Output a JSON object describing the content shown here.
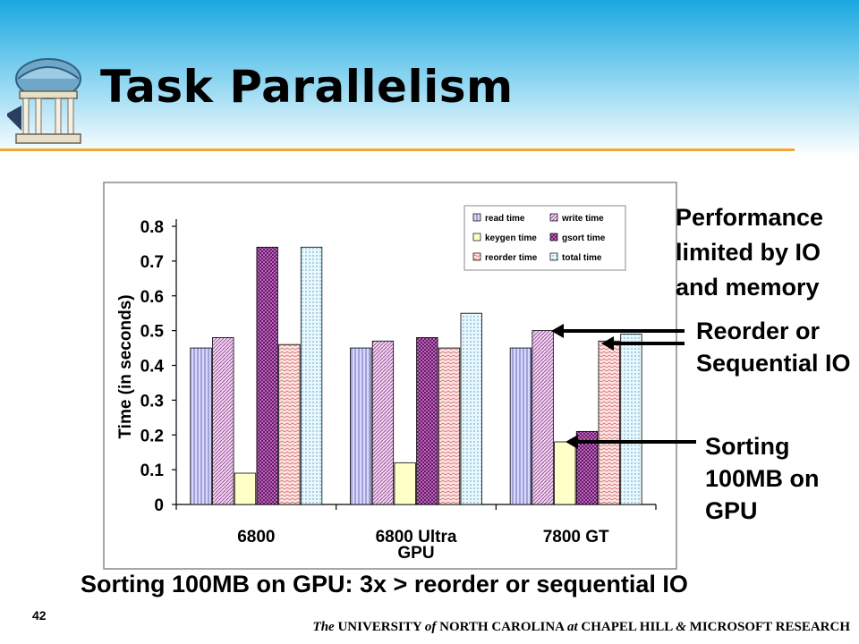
{
  "slide": {
    "title": "Task Parallelism",
    "caption": "Sorting 100MB on GPU: 3x > reorder or sequential IO",
    "number": "42",
    "footer": {
      "p1": "The ",
      "p2": "UNIVERSITY ",
      "p3": "of",
      "p4": " NORTH CAROLINA ",
      "p5": "at",
      "p6": " CHAPEL HILL ",
      "p7": "&",
      "p8": " MICROSOFT RESEARCH"
    },
    "notes": {
      "performance": "Performance limited by IO and memory",
      "reorder": "Reorder or Sequential IO",
      "sorting": "Sorting 100MB on GPU"
    },
    "logo_icon": "old-well-icon"
  },
  "chart_data": {
    "type": "bar",
    "categories": [
      "6800",
      "6800 Ultra",
      "7800 GT"
    ],
    "series": [
      {
        "name": "read time",
        "values": [
          0.45,
          0.45,
          0.45
        ],
        "color": "#d8d8ff",
        "pattern": "vertical"
      },
      {
        "name": "write time",
        "values": [
          0.48,
          0.47,
          0.5
        ],
        "color": "#e8c8e8",
        "pattern": "diagonal"
      },
      {
        "name": "keygen time",
        "values": [
          0.09,
          0.12,
          0.18
        ],
        "color": "#ffffc8",
        "pattern": "solid"
      },
      {
        "name": "gsort time",
        "values": [
          0.74,
          0.48,
          0.21
        ],
        "color": "#c060c0",
        "pattern": "checker"
      },
      {
        "name": "reorder time",
        "values": [
          0.46,
          0.45,
          0.47
        ],
        "color": "#ffe0e0",
        "pattern": "zigzag"
      },
      {
        "name": "total time",
        "values": [
          0.74,
          0.55,
          0.49
        ],
        "color": "#e0f4fc",
        "pattern": "dots"
      }
    ],
    "title": "",
    "xlabel": "GPU",
    "ylabel": "Time (in seconds)",
    "ylim": [
      0,
      0.8
    ],
    "yticks": [
      "0",
      "0.1",
      "0.2",
      "0.3",
      "0.4",
      "0.5",
      "0.6",
      "0.7",
      "0.8"
    ],
    "grid": false,
    "legend": "top-right, two columns"
  }
}
